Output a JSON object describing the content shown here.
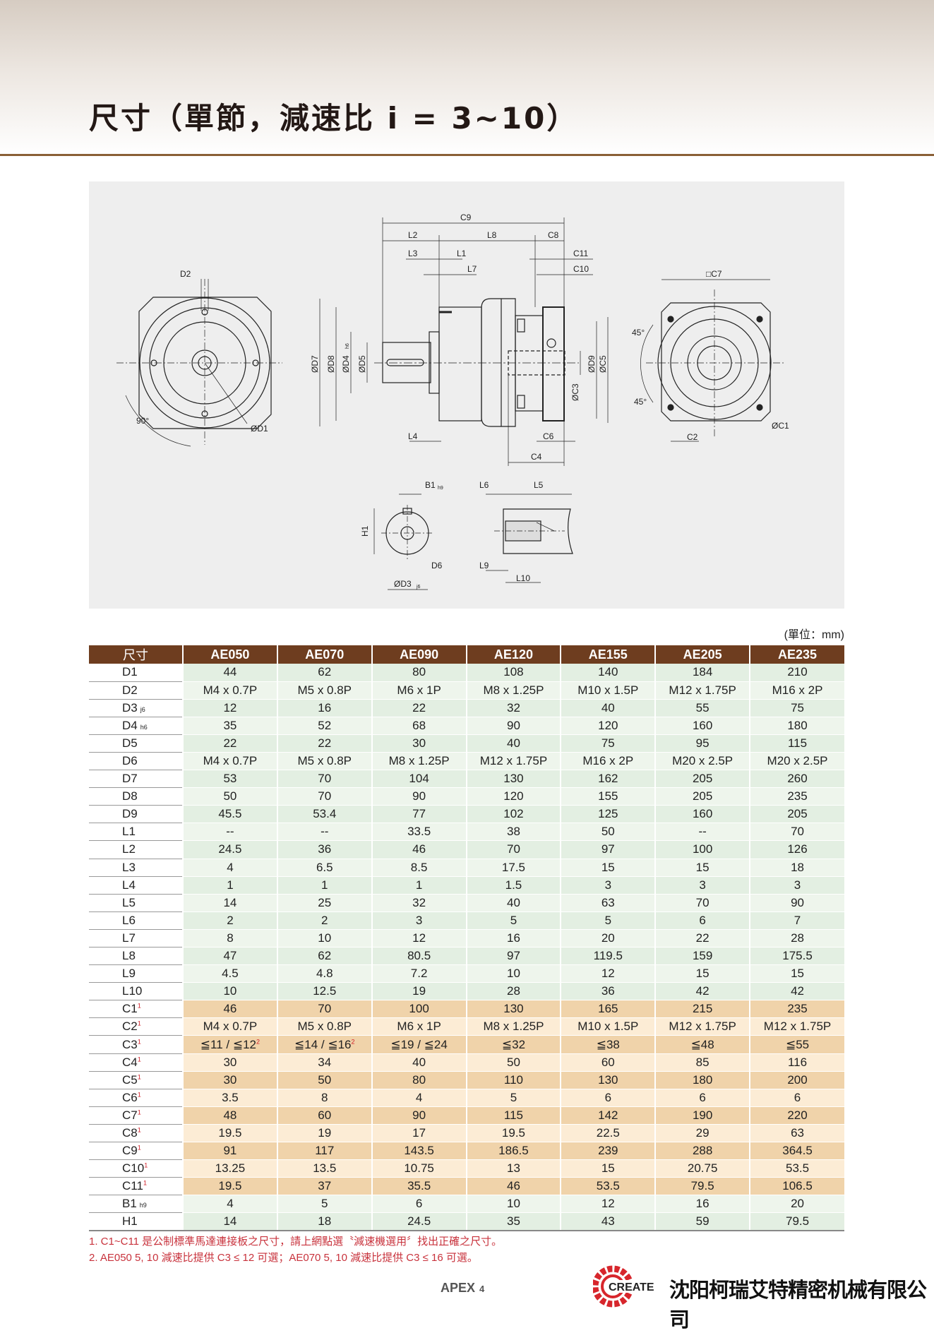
{
  "title": "尺寸（單節，減速比 i = 3~10）",
  "unit_label": "(單位：mm)",
  "drawing": {
    "labels": {
      "C9": "C9",
      "L2": "L2",
      "L8": "L8",
      "C8": "C8",
      "L3": "L3",
      "L1": "L1",
      "C11": "C11",
      "L7": "L7",
      "C10": "C10",
      "D7": "ØD7",
      "D8": "ØD8",
      "D4": "ØD4",
      "D4_sub": "h6",
      "D5": "ØD5",
      "C3": "ØC3",
      "D9": "ØD9",
      "C5": "ØC5",
      "L4": "L4",
      "C6": "C6",
      "C4": "C4",
      "D2": "D2",
      "angle90": "90°",
      "D1": "ØD1",
      "C7": "□C7",
      "angle45a": "45°",
      "angle45b": "45°",
      "C2": "C2",
      "C1": "ØC1",
      "B1": "B1",
      "B1_sub": "h9",
      "L6": "L6",
      "L5": "L5",
      "H1": "H1",
      "D6": "D6",
      "D3": "ØD3",
      "D3_sub": "j6",
      "L9": "L9",
      "L10": "L10"
    }
  },
  "table": {
    "header": [
      "尺寸",
      "AE050",
      "AE070",
      "AE090",
      "AE120",
      "AE155",
      "AE205",
      "AE235"
    ],
    "rows": [
      {
        "label": "D1",
        "group": "g",
        "values": [
          "44",
          "62",
          "80",
          "108",
          "140",
          "184",
          "210"
        ]
      },
      {
        "label": "D2",
        "group": "g",
        "values": [
          "M4 x 0.7P",
          "M5 x 0.8P",
          "M6 x 1P",
          "M8 x 1.25P",
          "M10 x 1.5P",
          "M12 x 1.75P",
          "M16 x 2P"
        ]
      },
      {
        "label": "D3",
        "sub": "j6",
        "group": "g",
        "values": [
          "12",
          "16",
          "22",
          "32",
          "40",
          "55",
          "75"
        ]
      },
      {
        "label": "D4",
        "sub": "h6",
        "group": "g",
        "values": [
          "35",
          "52",
          "68",
          "90",
          "120",
          "160",
          "180"
        ]
      },
      {
        "label": "D5",
        "group": "g",
        "values": [
          "22",
          "22",
          "30",
          "40",
          "75",
          "95",
          "115"
        ]
      },
      {
        "label": "D6",
        "group": "g",
        "values": [
          "M4 x 0.7P",
          "M5 x 0.8P",
          "M8 x 1.25P",
          "M12 x 1.75P",
          "M16 x 2P",
          "M20 x 2.5P",
          "M20 x 2.5P"
        ]
      },
      {
        "label": "D7",
        "group": "g",
        "values": [
          "53",
          "70",
          "104",
          "130",
          "162",
          "205",
          "260"
        ]
      },
      {
        "label": "D8",
        "group": "g",
        "values": [
          "50",
          "70",
          "90",
          "120",
          "155",
          "205",
          "235"
        ]
      },
      {
        "label": "D9",
        "group": "g",
        "values": [
          "45.5",
          "53.4",
          "77",
          "102",
          "125",
          "160",
          "205"
        ]
      },
      {
        "label": "L1",
        "group": "g",
        "values": [
          "--",
          "--",
          "33.5",
          "38",
          "50",
          "--",
          "70"
        ]
      },
      {
        "label": "L2",
        "group": "g",
        "values": [
          "24.5",
          "36",
          "46",
          "70",
          "97",
          "100",
          "126"
        ]
      },
      {
        "label": "L3",
        "group": "g",
        "values": [
          "4",
          "6.5",
          "8.5",
          "17.5",
          "15",
          "15",
          "18"
        ]
      },
      {
        "label": "L4",
        "group": "g",
        "values": [
          "1",
          "1",
          "1",
          "1.5",
          "3",
          "3",
          "3"
        ]
      },
      {
        "label": "L5",
        "group": "g",
        "values": [
          "14",
          "25",
          "32",
          "40",
          "63",
          "70",
          "90"
        ]
      },
      {
        "label": "L6",
        "group": "g",
        "values": [
          "2",
          "2",
          "3",
          "5",
          "5",
          "6",
          "7"
        ]
      },
      {
        "label": "L7",
        "group": "g",
        "values": [
          "8",
          "10",
          "12",
          "16",
          "20",
          "22",
          "28"
        ]
      },
      {
        "label": "L8",
        "group": "g",
        "values": [
          "47",
          "62",
          "80.5",
          "97",
          "119.5",
          "159",
          "175.5"
        ]
      },
      {
        "label": "L9",
        "group": "g",
        "values": [
          "4.5",
          "4.8",
          "7.2",
          "10",
          "12",
          "15",
          "15"
        ]
      },
      {
        "label": "L10",
        "group": "g",
        "values": [
          "10",
          "12.5",
          "19",
          "28",
          "36",
          "42",
          "42"
        ]
      },
      {
        "label": "C1",
        "sup": "1",
        "group": "c",
        "values": [
          "46",
          "70",
          "100",
          "130",
          "165",
          "215",
          "235"
        ]
      },
      {
        "label": "C2",
        "sup": "1",
        "group": "c",
        "values": [
          "M4 x 0.7P",
          "M5 x 0.8P",
          "M6 x 1P",
          "M8 x 1.25P",
          "M10 x 1.5P",
          "M12 x 1.75P",
          "M12 x 1.75P"
        ]
      },
      {
        "label": "C3",
        "sup": "1",
        "group": "c",
        "values": [
          "≦11 / ≦12",
          "≦14 / ≦16",
          "≦19 / ≦24",
          "≦32",
          "≦38",
          "≦48",
          "≦55"
        ],
        "value_sups": [
          "2",
          "2",
          "",
          "",
          "",
          "",
          ""
        ]
      },
      {
        "label": "C4",
        "sup": "1",
        "group": "c",
        "values": [
          "30",
          "34",
          "40",
          "50",
          "60",
          "85",
          "116"
        ]
      },
      {
        "label": "C5",
        "sup": "1",
        "group": "c",
        "values": [
          "30",
          "50",
          "80",
          "110",
          "130",
          "180",
          "200"
        ]
      },
      {
        "label": "C6",
        "sup": "1",
        "group": "c",
        "values": [
          "3.5",
          "8",
          "4",
          "5",
          "6",
          "6",
          "6"
        ]
      },
      {
        "label": "C7",
        "sup": "1",
        "group": "c",
        "values": [
          "48",
          "60",
          "90",
          "115",
          "142",
          "190",
          "220"
        ]
      },
      {
        "label": "C8",
        "sup": "1",
        "group": "c",
        "values": [
          "19.5",
          "19",
          "17",
          "19.5",
          "22.5",
          "29",
          "63"
        ]
      },
      {
        "label": "C9",
        "sup": "1",
        "group": "c",
        "values": [
          "91",
          "117",
          "143.5",
          "186.5",
          "239",
          "288",
          "364.5"
        ]
      },
      {
        "label": "C10",
        "sup": "1",
        "group": "c",
        "values": [
          "13.25",
          "13.5",
          "10.75",
          "13",
          "15",
          "20.75",
          "53.5"
        ]
      },
      {
        "label": "C11",
        "sup": "1",
        "group": "c",
        "values": [
          "19.5",
          "37",
          "35.5",
          "46",
          "53.5",
          "79.5",
          "106.5"
        ]
      },
      {
        "label": "B1",
        "sub": "h9",
        "group": "g",
        "values": [
          "4",
          "5",
          "6",
          "10",
          "12",
          "16",
          "20"
        ]
      },
      {
        "label": "H1",
        "group": "g",
        "values": [
          "14",
          "18",
          "24.5",
          "35",
          "43",
          "59",
          "79.5"
        ]
      }
    ],
    "colors": {
      "header": "#6e3d1f",
      "green_row": "#e3efe2",
      "tan_row": "#f0d3aa"
    }
  },
  "footnotes": [
    "1. C1~C11 是公制標準馬達連接板之尺寸，請上網點選〝減速機選用〞找出正確之尺寸。",
    "2. AE050 5, 10 減速比提供 C3 ≤ 12 可選；AE070 5, 10 減速比提供 C3 ≤ 16 可選。"
  ],
  "footer": {
    "brand": "APEX",
    "page": "4",
    "logo_text": "CREATE",
    "company": "沈阳柯瑞艾特精密机械有限公司"
  }
}
